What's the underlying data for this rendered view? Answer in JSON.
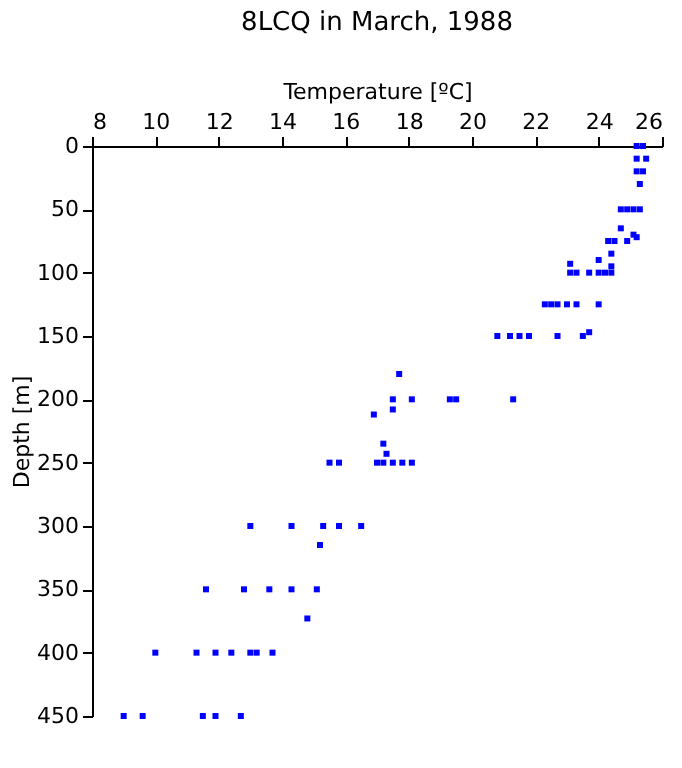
{
  "chart_data": {
    "type": "scatter",
    "title": "8LCQ in March, 1988",
    "xlabel": "Temperature [ºC]",
    "ylabel": "Depth [m]",
    "xlim": [
      8,
      26
    ],
    "xticks": [
      8,
      10,
      12,
      14,
      16,
      18,
      20,
      22,
      24,
      26
    ],
    "ylim": [
      450,
      0
    ],
    "yticks": [
      0,
      50,
      100,
      150,
      200,
      250,
      300,
      350,
      400,
      450
    ],
    "grid": false,
    "marker": "square",
    "series": [
      {
        "color": "#0000ff",
        "x": [
          25.2,
          25.4,
          25.2,
          25.5,
          25.2,
          25.4,
          25.3,
          24.7,
          24.9,
          25.1,
          25.3,
          24.7,
          25.1,
          25.2,
          24.3,
          24.5,
          24.9,
          24.4,
          24.0,
          23.1,
          24.4,
          23.1,
          23.3,
          23.7,
          24.0,
          24.2,
          24.4,
          22.3,
          22.5,
          22.7,
          23.0,
          23.3,
          24.0,
          20.8,
          21.2,
          21.5,
          21.8,
          22.7,
          23.5,
          23.7,
          17.7,
          17.5,
          18.1,
          19.3,
          19.5,
          21.3,
          17.5,
          16.9,
          17.2,
          17.3,
          15.5,
          15.8,
          17.0,
          17.2,
          17.5,
          17.8,
          18.1,
          13.0,
          14.3,
          15.3,
          15.8,
          16.5,
          15.2,
          11.6,
          12.8,
          13.6,
          14.3,
          15.1,
          14.8,
          10.0,
          11.3,
          11.9,
          12.4,
          13.0,
          13.2,
          13.7,
          9.0,
          9.6,
          11.5,
          11.9,
          12.7
        ],
        "values": [
          0,
          0,
          10,
          10,
          20,
          20,
          30,
          50,
          50,
          50,
          50,
          65,
          70,
          72,
          75,
          75,
          75,
          85,
          90,
          93,
          95,
          100,
          100,
          100,
          100,
          100,
          100,
          125,
          125,
          125,
          125,
          125,
          125,
          150,
          150,
          150,
          150,
          150,
          150,
          147,
          180,
          200,
          200,
          200,
          200,
          200,
          208,
          212,
          235,
          243,
          250,
          250,
          250,
          250,
          250,
          250,
          250,
          300,
          300,
          300,
          300,
          300,
          315,
          350,
          350,
          350,
          350,
          350,
          373,
          400,
          400,
          400,
          400,
          400,
          400,
          400,
          450,
          450,
          450,
          450,
          450
        ]
      }
    ]
  }
}
